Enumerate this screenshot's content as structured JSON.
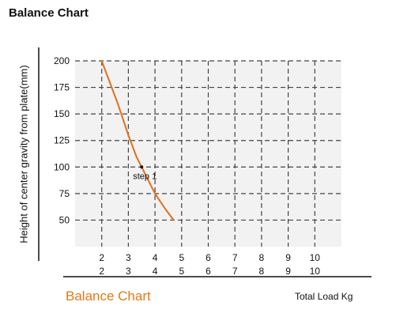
{
  "page": {
    "title": "Balance Chart",
    "footer_title": "Balance Chart",
    "footer_title_color": "#e07a1a"
  },
  "chart_data": {
    "type": "line",
    "title": "Balance Chart",
    "xlabel": "Total Load Kg",
    "ylabel": "Height of center gravity from plate(mm)",
    "x_ticks": [
      "2",
      "3",
      "4",
      "5",
      "6",
      "7",
      "8",
      "9",
      "10"
    ],
    "x_tick_values": [
      2,
      3,
      4,
      5,
      6,
      7,
      8,
      9,
      10
    ],
    "y_ticks": [
      "200",
      "175",
      "150",
      "125",
      "100",
      "75",
      "50"
    ],
    "y_tick_values": [
      200,
      175,
      150,
      125,
      100,
      75,
      50
    ],
    "xlim": [
      1,
      11
    ],
    "ylim": [
      25,
      200
    ],
    "grid": true,
    "grid_style": "dashed",
    "series": [
      {
        "color": "#e0701a",
        "x": [
          2.0,
          2.3,
          2.6,
          3.0,
          3.3,
          3.6,
          4.0,
          4.4,
          4.7
        ],
        "y": [
          200,
          180,
          160,
          130,
          110,
          95,
          75,
          60,
          50
        ]
      }
    ],
    "annotations": [
      {
        "text": "step 1",
        "x": 3.5,
        "y": 100
      }
    ]
  }
}
